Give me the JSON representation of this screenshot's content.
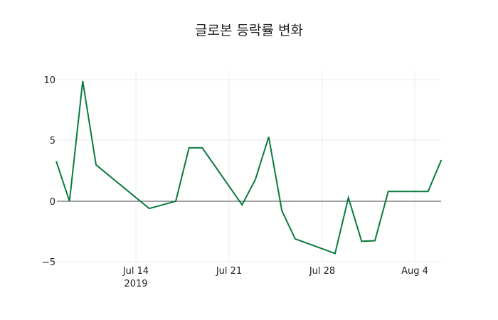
{
  "chart_data": {
    "type": "line",
    "title": "글로본 등락률 변화",
    "xlabel": "",
    "ylabel": "",
    "ylim": [
      -5,
      10.5
    ],
    "grid": true,
    "legend": "none",
    "line_color": "#0a7a3e",
    "x_ticks": [
      "Jul 14\n2019",
      "Jul 21",
      "Jul 28",
      "Aug 4"
    ],
    "y_ticks": [
      "10",
      "5",
      "0",
      "−5"
    ],
    "series": [
      {
        "name": "등락률",
        "x": [
          "2019-07-08",
          "2019-07-09",
          "2019-07-10",
          "2019-07-11",
          "2019-07-15",
          "2019-07-17",
          "2019-07-18",
          "2019-07-19",
          "2019-07-22",
          "2019-07-23",
          "2019-07-24",
          "2019-07-25",
          "2019-07-26",
          "2019-07-29",
          "2019-07-30",
          "2019-07-31",
          "2019-08-01",
          "2019-08-02",
          "2019-08-05",
          "2019-08-06"
        ],
        "values": [
          3.3,
          0.0,
          9.9,
          3.0,
          -0.6,
          0.0,
          4.4,
          4.4,
          -0.3,
          1.8,
          5.3,
          -0.8,
          -3.1,
          -4.3,
          0.3,
          -3.3,
          -3.25,
          0.8,
          0.8,
          3.4
        ]
      }
    ]
  },
  "labels": {
    "x_tick_0": "Jul 14",
    "x_tick_0_year": "2019",
    "x_tick_1": "Jul 21",
    "x_tick_2": "Jul 28",
    "x_tick_3": "Aug 4",
    "y_tick_0": "10",
    "y_tick_1": "5",
    "y_tick_2": "0",
    "y_tick_3": "−5"
  }
}
